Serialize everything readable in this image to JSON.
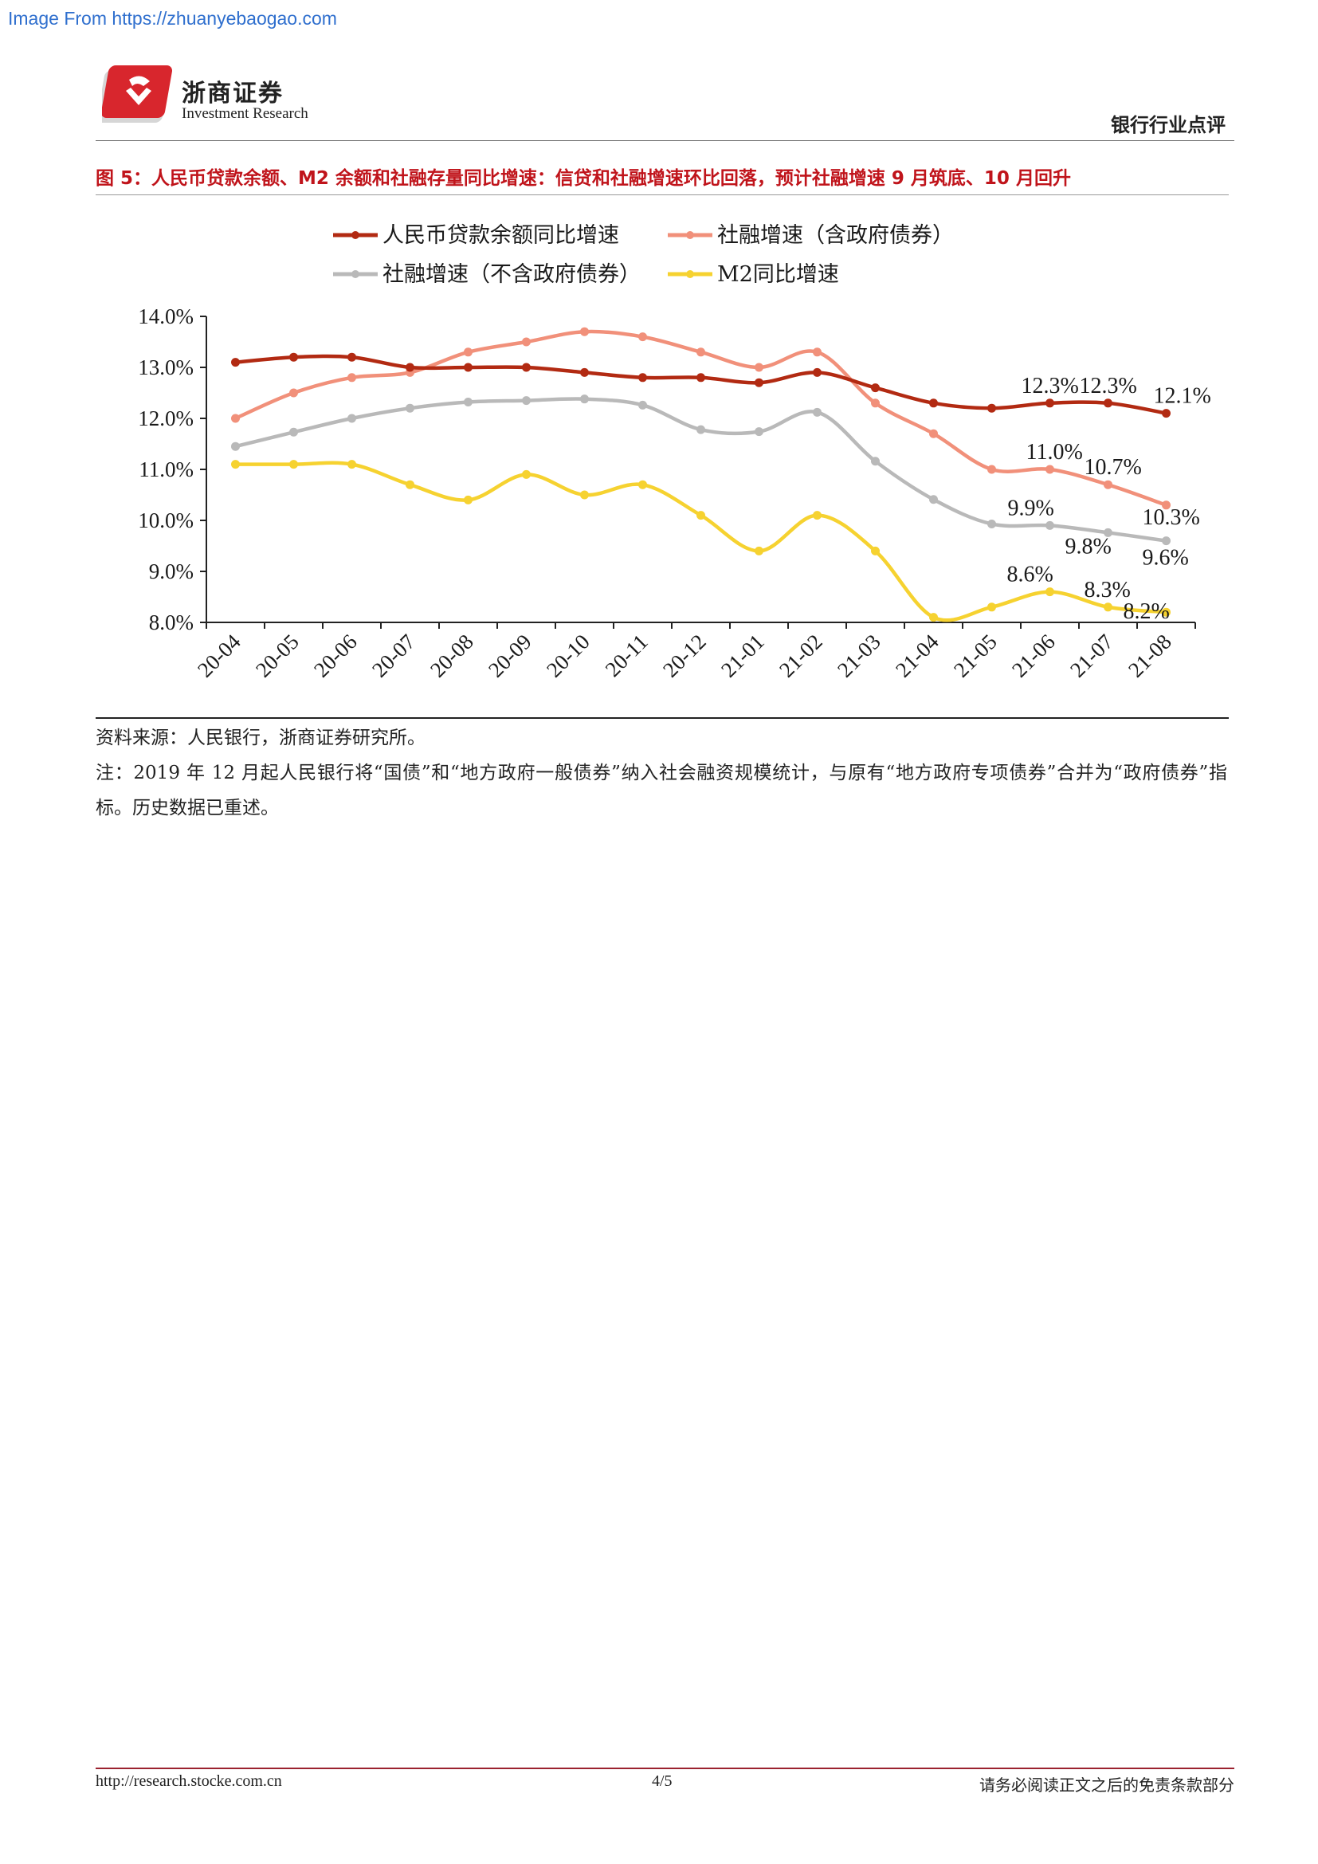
{
  "watermark": "Image From https://zhuanyebaogao.com",
  "header": {
    "company_cn": "浙商证券",
    "company_en": "Investment Research",
    "report_type": "银行行业点评"
  },
  "figure": {
    "title": "图 5：人民币贷款余额、M2 余额和社融存量同比增速：信贷和社融增速环比回落，预计社融增速 9 月筑底、10 月回升"
  },
  "chart_data": {
    "type": "line",
    "categories": [
      "20-04",
      "20-05",
      "20-06",
      "20-07",
      "20-08",
      "20-09",
      "20-10",
      "20-11",
      "20-12",
      "21-01",
      "21-02",
      "21-03",
      "21-04",
      "21-05",
      "21-06",
      "21-07",
      "21-08"
    ],
    "ylim": [
      8.0,
      14.0
    ],
    "yticks": [
      "14.0%",
      "13.0%",
      "12.0%",
      "11.0%",
      "10.0%",
      "9.0%",
      "8.0%"
    ],
    "legend_position": "top",
    "series": [
      {
        "name": "人民币贷款余额同比增速",
        "color": "#b22a12",
        "values": [
          13.1,
          13.2,
          13.2,
          13.0,
          13.0,
          13.0,
          12.9,
          12.8,
          12.8,
          12.7,
          12.9,
          12.6,
          12.3,
          12.2,
          12.3,
          12.3,
          12.1
        ],
        "labels": [
          {
            "i": 14,
            "text": "12.3%"
          },
          {
            "i": 15,
            "text": "12.3%"
          },
          {
            "i": 16,
            "text": "12.1%"
          }
        ]
      },
      {
        "name": "社融增速（含政府债券）",
        "color": "#f1907a",
        "values": [
          12.0,
          12.5,
          12.8,
          12.9,
          13.3,
          13.5,
          13.7,
          13.6,
          13.3,
          13.0,
          13.3,
          12.3,
          11.7,
          11.0,
          11.0,
          10.7,
          10.3
        ],
        "labels": [
          {
            "i": 14,
            "text": "11.0%"
          },
          {
            "i": 15,
            "text": "10.7%"
          },
          {
            "i": 16,
            "text": "10.3%"
          }
        ]
      },
      {
        "name": "社融增速（不含政府债券）",
        "color": "#b9b9b9",
        "values": [
          11.45,
          11.73,
          12.0,
          12.2,
          12.32,
          12.35,
          12.38,
          12.26,
          11.78,
          11.74,
          12.12,
          11.16,
          10.41,
          9.93,
          9.9,
          9.76,
          9.6
        ],
        "labels": [
          {
            "i": 14,
            "text": "9.9%"
          },
          {
            "i": 15,
            "text": "9.8%"
          },
          {
            "i": 16,
            "text": "9.6%"
          }
        ]
      },
      {
        "name": "M2同比增速",
        "color": "#f6d230",
        "values": [
          11.1,
          11.1,
          11.1,
          10.7,
          10.4,
          10.9,
          10.5,
          10.7,
          10.1,
          9.4,
          10.1,
          9.4,
          8.1,
          8.3,
          8.6,
          8.3,
          8.2
        ],
        "labels": [
          {
            "i": 14,
            "text": "8.6%"
          },
          {
            "i": 15,
            "text": "8.3%"
          },
          {
            "i": 16,
            "text": "8.2%"
          }
        ]
      }
    ]
  },
  "source": "资料来源：人民银行，浙商证券研究所。",
  "note": "注：2019 年 12 月起人民银行将“国债”和“地方政府一般债券”纳入社会融资规模统计，与原有“地方政府专项债券”合并为“政府债券”指标。历史数据已重述。",
  "footer": {
    "url": "http://research.stocke.com.cn",
    "page": "4/5",
    "disclaimer": "请务必阅读正文之后的免责条款部分"
  }
}
